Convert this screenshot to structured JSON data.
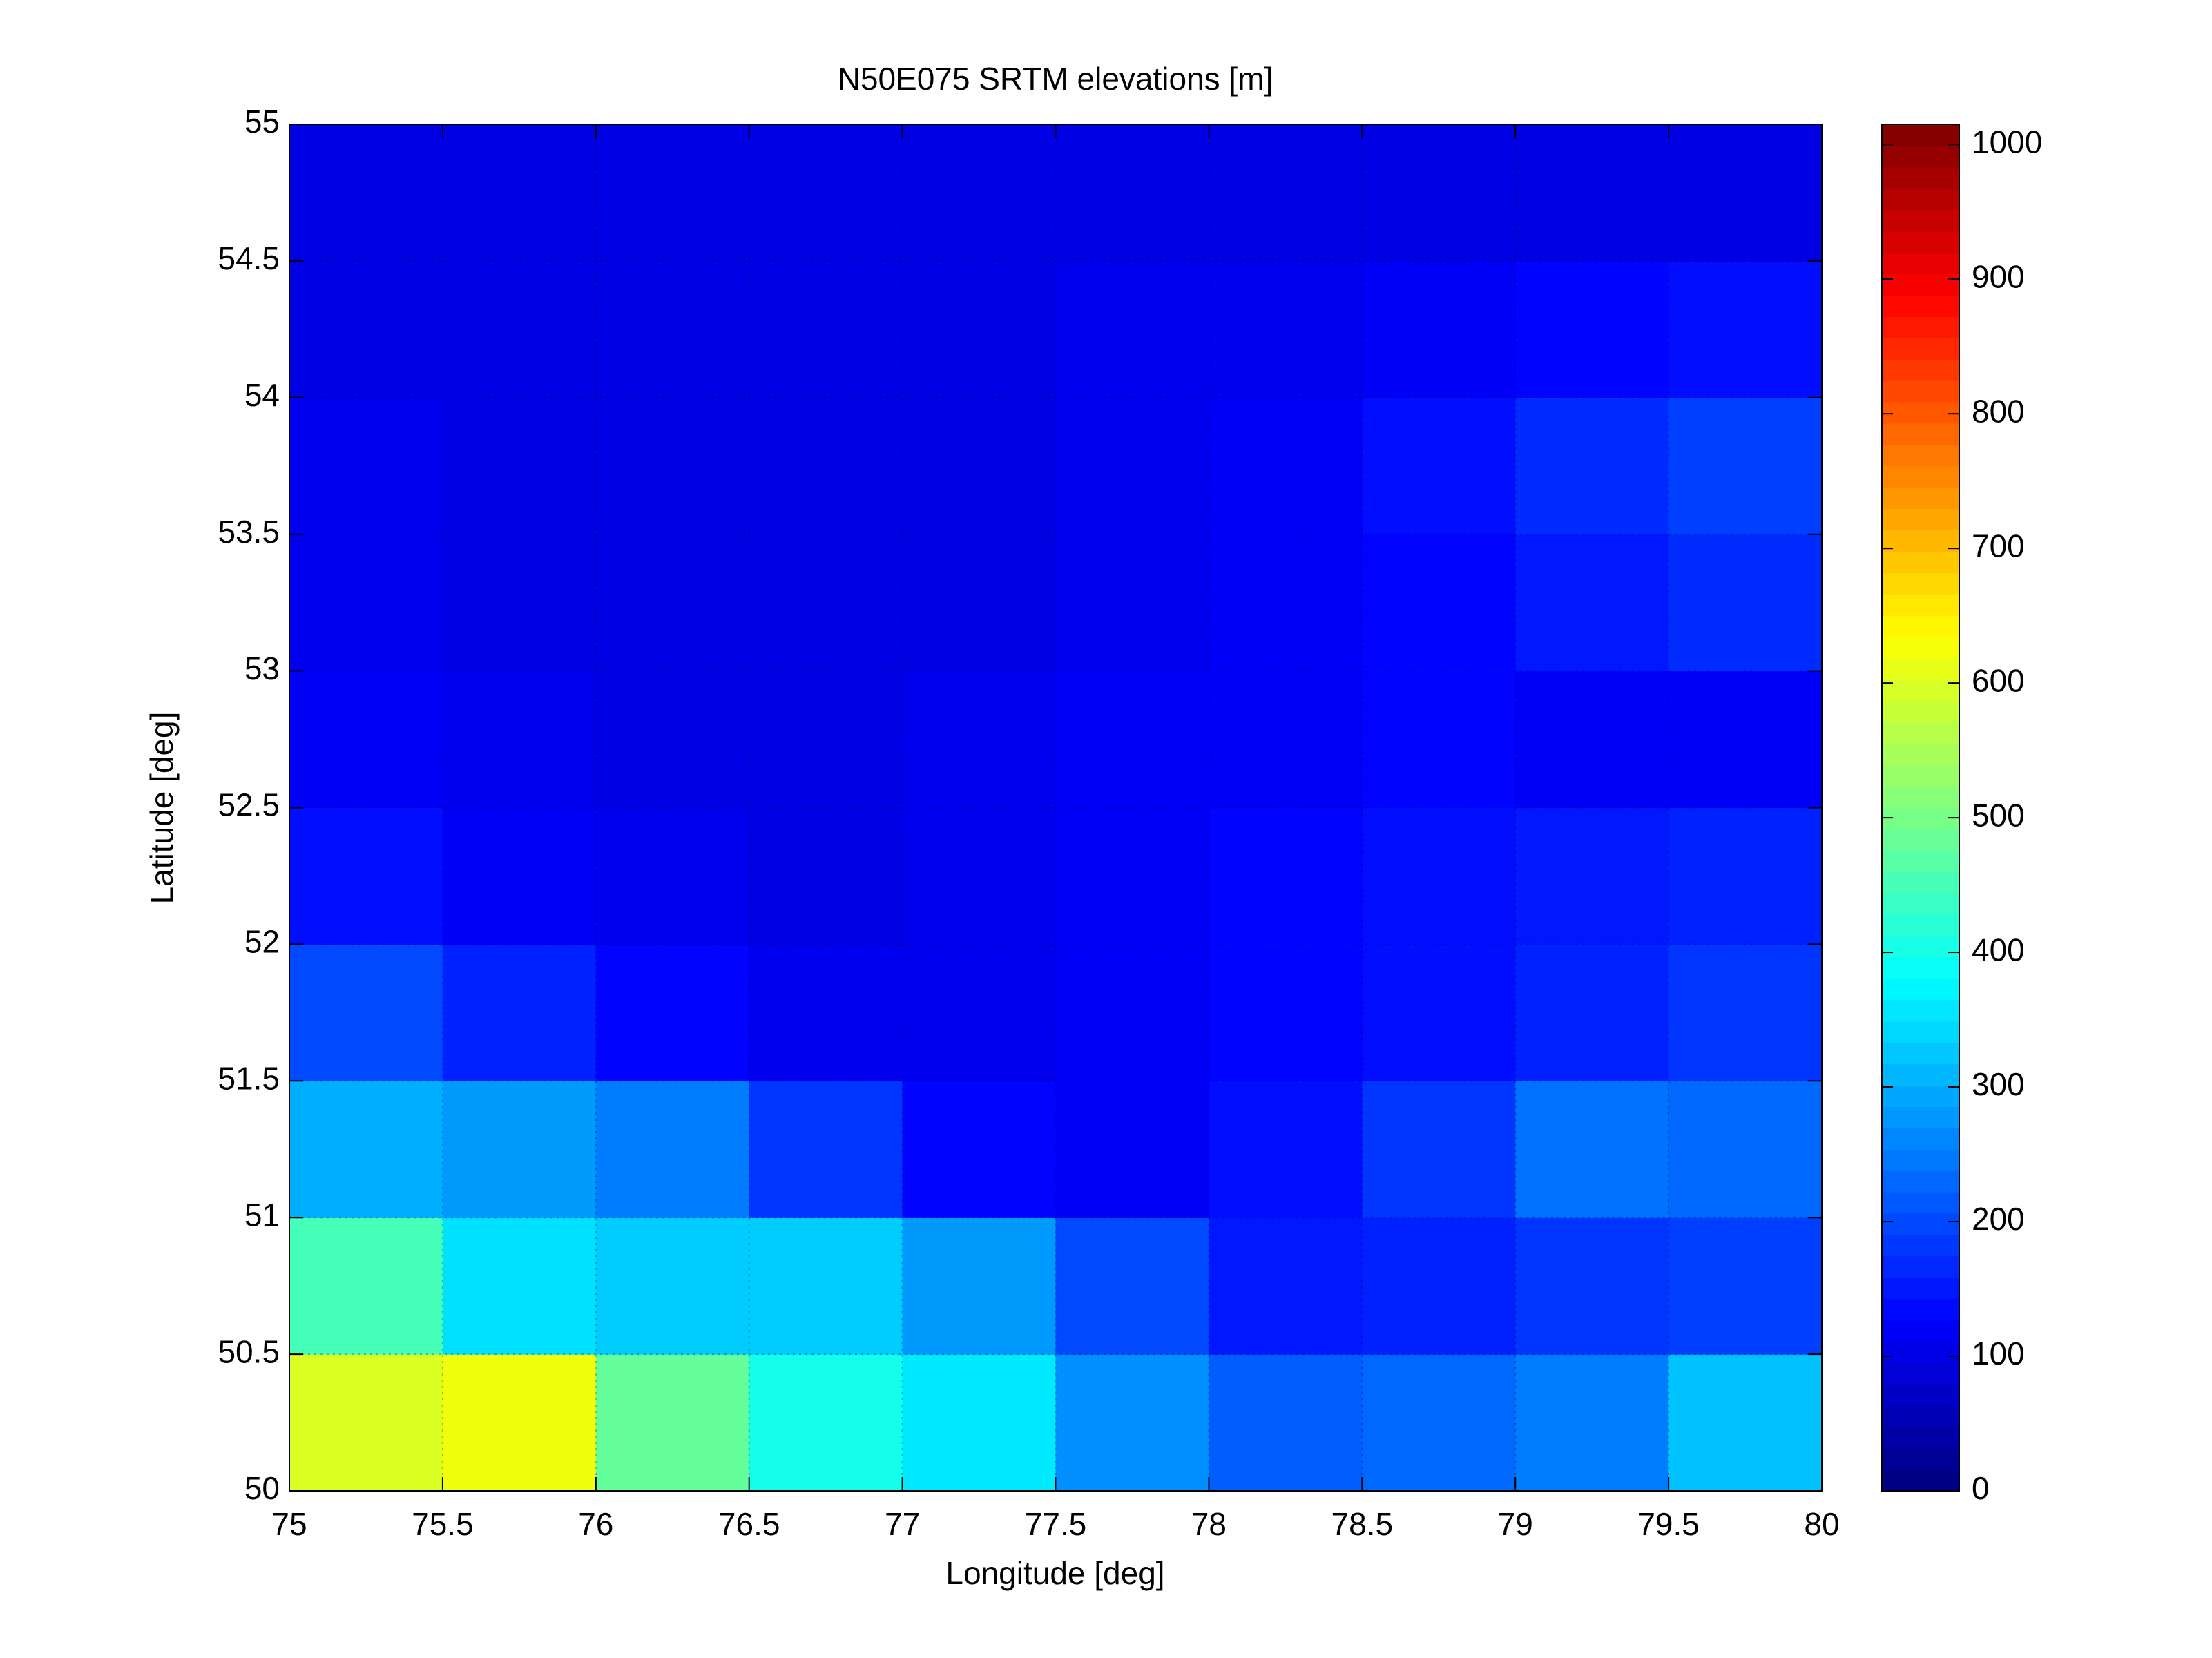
{
  "chart_data": {
    "type": "heatmap",
    "title": "N50E075 SRTM elevations [m]",
    "xlabel": "Longitude [deg]",
    "ylabel": "Latitude [deg]",
    "xlim": [
      75,
      80
    ],
    "ylim": [
      50,
      55
    ],
    "xticks": [
      75,
      75.5,
      76,
      76.5,
      77,
      77.5,
      78,
      78.5,
      79,
      79.5,
      80
    ],
    "yticks": [
      50,
      50.5,
      51,
      51.5,
      52,
      52.5,
      53,
      53.5,
      54,
      54.5,
      55
    ],
    "grid": true,
    "colormap": "jet",
    "clim": [
      0,
      1015
    ],
    "cticks": [
      0,
      100,
      200,
      300,
      400,
      500,
      600,
      700,
      800,
      900,
      1000
    ],
    "z": [
      [
        600,
        620,
        480,
        400,
        360,
        270,
        220,
        230,
        250,
        320
      ],
      [
        450,
        350,
        330,
        330,
        280,
        200,
        150,
        160,
        180,
        190
      ],
      [
        300,
        280,
        250,
        180,
        130,
        120,
        140,
        180,
        240,
        230
      ],
      [
        200,
        160,
        130,
        110,
        110,
        120,
        130,
        140,
        160,
        180
      ],
      [
        140,
        120,
        110,
        100,
        110,
        120,
        130,
        140,
        150,
        160
      ],
      [
        120,
        110,
        100,
        100,
        110,
        120,
        120,
        130,
        120,
        120
      ],
      [
        110,
        100,
        100,
        100,
        100,
        110,
        120,
        130,
        150,
        170
      ],
      [
        110,
        100,
        100,
        100,
        100,
        110,
        120,
        140,
        170,
        190
      ],
      [
        100,
        100,
        100,
        100,
        100,
        110,
        110,
        120,
        130,
        140
      ],
      [
        100,
        100,
        100,
        100,
        100,
        100,
        100,
        100,
        100,
        100
      ]
    ]
  }
}
